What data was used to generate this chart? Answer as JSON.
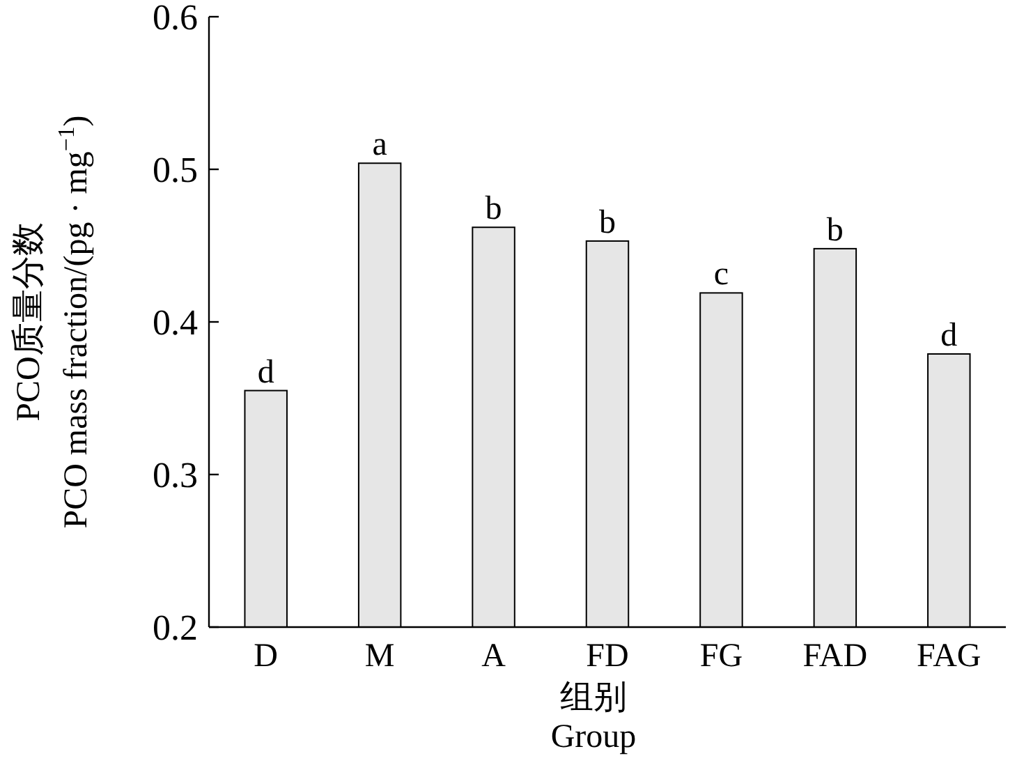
{
  "chart_data": {
    "type": "bar",
    "ylabel": "PCO质量分数\nPCO mass fraction/(pg · mg$^{−1}$)",
    "xlabel": "组别\nGroup",
    "categories": [
      "D",
      "M",
      "A",
      "FD",
      "FG",
      "FAD",
      "FAG"
    ],
    "values": [
      0.355,
      0.504,
      0.462,
      0.453,
      0.419,
      0.448,
      0.379
    ],
    "color": "#e6e6e6",
    "ylim": [
      0.2,
      0.6
    ],
    "yticks": [
      0.2,
      0.3,
      0.4,
      0.5,
      0.6
    ],
    "annotations": [
      {
        "text": "d",
        "x": "D",
        "y": 0.355
      },
      {
        "text": "a",
        "x": "M",
        "y": 0.504
      },
      {
        "text": "b",
        "x": "A",
        "y": 0.462
      },
      {
        "text": "b",
        "x": "FD",
        "y": 0.453
      },
      {
        "text": "c",
        "x": "FG",
        "y": 0.419
      },
      {
        "text": "b",
        "x": "FAD",
        "y": 0.448
      },
      {
        "text": "d",
        "x": "FAG",
        "y": 0.379
      }
    ],
    "grid": false
  }
}
